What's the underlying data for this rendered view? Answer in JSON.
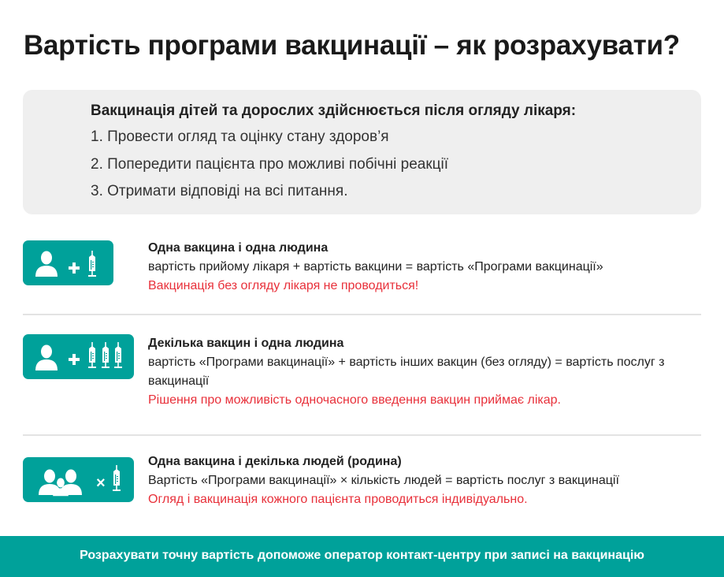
{
  "title": "Вартість програми вакцинації – як розрахувати?",
  "info": {
    "heading": "Вакцинація дітей та дорослих здійснюється після огляду лікаря:",
    "items": [
      "1. Провести огляд та оцінку стану здоров’я",
      "2. Попередити пацієнта про можливі побічні реакції",
      "3. Отримати відповіді на всі питання."
    ]
  },
  "cases": [
    {
      "icon": "person-plus-syringe-icon",
      "title": "Одна вакцина і одна людина",
      "formula": "вартість прийому лікаря + вартість вакцини = вартість «Програми вакцинації»",
      "note": "Вакцинація без огляду лікаря не проводиться!"
    },
    {
      "icon": "person-plus-three-syringes-icon",
      "title": "Декілька вакцин і одна людина",
      "formula": "вартість «Програми вакцинації» + вартість інших вакцин (без огляду) = вартість послуг з вакцинації",
      "note": "Рішення про можливість одночасного введення вакцин приймає лікар."
    },
    {
      "icon": "family-times-syringe-icon",
      "title": "Одна вакцина і декілька людей (родина)",
      "formula": "Вартість  «Програми вакцинації» × кількість людей = вартість послуг з вакцинації",
      "note": "Огляд і вакцинація кожного пацієнта проводиться індивідуально."
    }
  ],
  "footer": "Розрахувати точну вартість допоможе оператор контакт-центру при записі на вакцинацію",
  "colors": {
    "accent": "#00a19a",
    "warning": "#e8303a"
  }
}
